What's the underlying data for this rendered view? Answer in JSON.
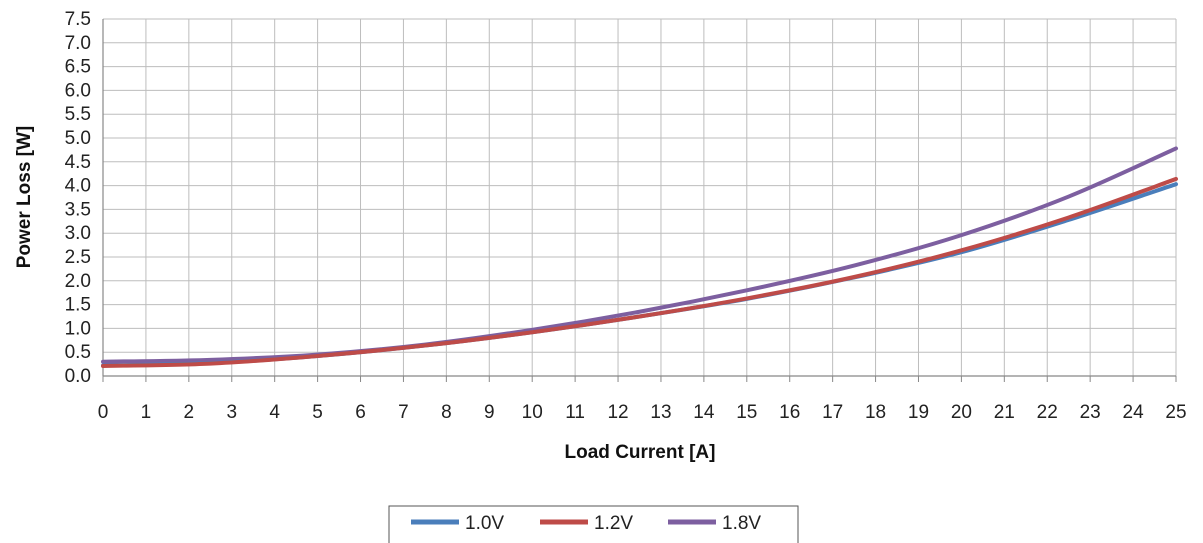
{
  "chart_data": {
    "type": "line",
    "title": "",
    "xlabel": "Load Current [A]",
    "ylabel": "Power Loss [W]",
    "xlim": [
      0,
      25
    ],
    "ylim": [
      0,
      7.5
    ],
    "x_ticks": [
      "0",
      "1",
      "2",
      "3",
      "4",
      "5",
      "6",
      "7",
      "8",
      "9",
      "10",
      "11",
      "12",
      "13",
      "14",
      "15",
      "16",
      "17",
      "18",
      "19",
      "20",
      "21",
      "22",
      "23",
      "24",
      "25"
    ],
    "y_ticks": [
      "0.0",
      "0.5",
      "1.0",
      "1.5",
      "2.0",
      "2.5",
      "3.0",
      "3.5",
      "4.0",
      "4.5",
      "5.0",
      "5.5",
      "6.0",
      "6.5",
      "7.0",
      "7.5"
    ],
    "grid": true,
    "legend_position": "bottom",
    "x": [
      0,
      2.5,
      5,
      7.5,
      10,
      12.5,
      15,
      17.5,
      20,
      22.5,
      25
    ],
    "series": [
      {
        "name": "1.0V",
        "color": "#4a7ebb",
        "values": [
          0.22,
          0.27,
          0.42,
          0.64,
          0.92,
          1.25,
          1.62,
          2.07,
          2.6,
          3.28,
          4.03
        ]
      },
      {
        "name": "1.2V",
        "color": "#be4b48",
        "values": [
          0.21,
          0.26,
          0.42,
          0.64,
          0.92,
          1.25,
          1.63,
          2.08,
          2.64,
          3.33,
          4.14
        ]
      },
      {
        "name": "1.8V",
        "color": "#7d5fa0",
        "values": [
          0.3,
          0.34,
          0.45,
          0.66,
          0.97,
          1.35,
          1.8,
          2.32,
          2.96,
          3.77,
          4.78
        ]
      }
    ]
  }
}
